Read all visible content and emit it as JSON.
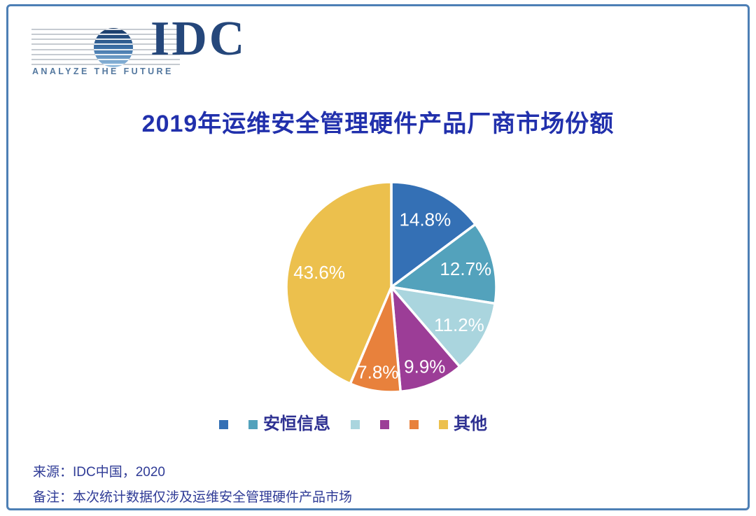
{
  "brand": {
    "logo_text": "IDC",
    "tagline": "ANALYZE THE FUTURE"
  },
  "title": "2019年运维安全管理硬件产品厂商市场份额",
  "chart_data": {
    "type": "pie",
    "title": "2019年运维安全管理硬件产品厂商市场份额",
    "slices": [
      {
        "label": "",
        "value": 14.8,
        "display": "14.8%",
        "color": "#3470b5"
      },
      {
        "label": "安恒信息",
        "value": 12.7,
        "display": "12.7%",
        "color": "#53a2bc"
      },
      {
        "label": "",
        "value": 11.2,
        "display": "11.2%",
        "color": "#aad5de"
      },
      {
        "label": "",
        "value": 9.9,
        "display": "9.9%",
        "color": "#9c3d97"
      },
      {
        "label": "",
        "value": 7.8,
        "display": "7.8%",
        "color": "#e8813c"
      },
      {
        "label": "其他",
        "value": 43.6,
        "display": "43.6%",
        "color": "#ecc04d"
      }
    ],
    "start_angle_deg": 0,
    "direction": "clockwise",
    "label_color": "#ffffff",
    "slice_gap_color": "#ffffff",
    "legend_position": "bottom",
    "label_radius": [
      0.72,
      0.73,
      0.74,
      0.82,
      0.82,
      0.7
    ]
  },
  "footer": {
    "source": "来源：IDC中国，2020",
    "note": "备注：本次统计数据仅涉及运维安全管理硬件产品市场"
  }
}
